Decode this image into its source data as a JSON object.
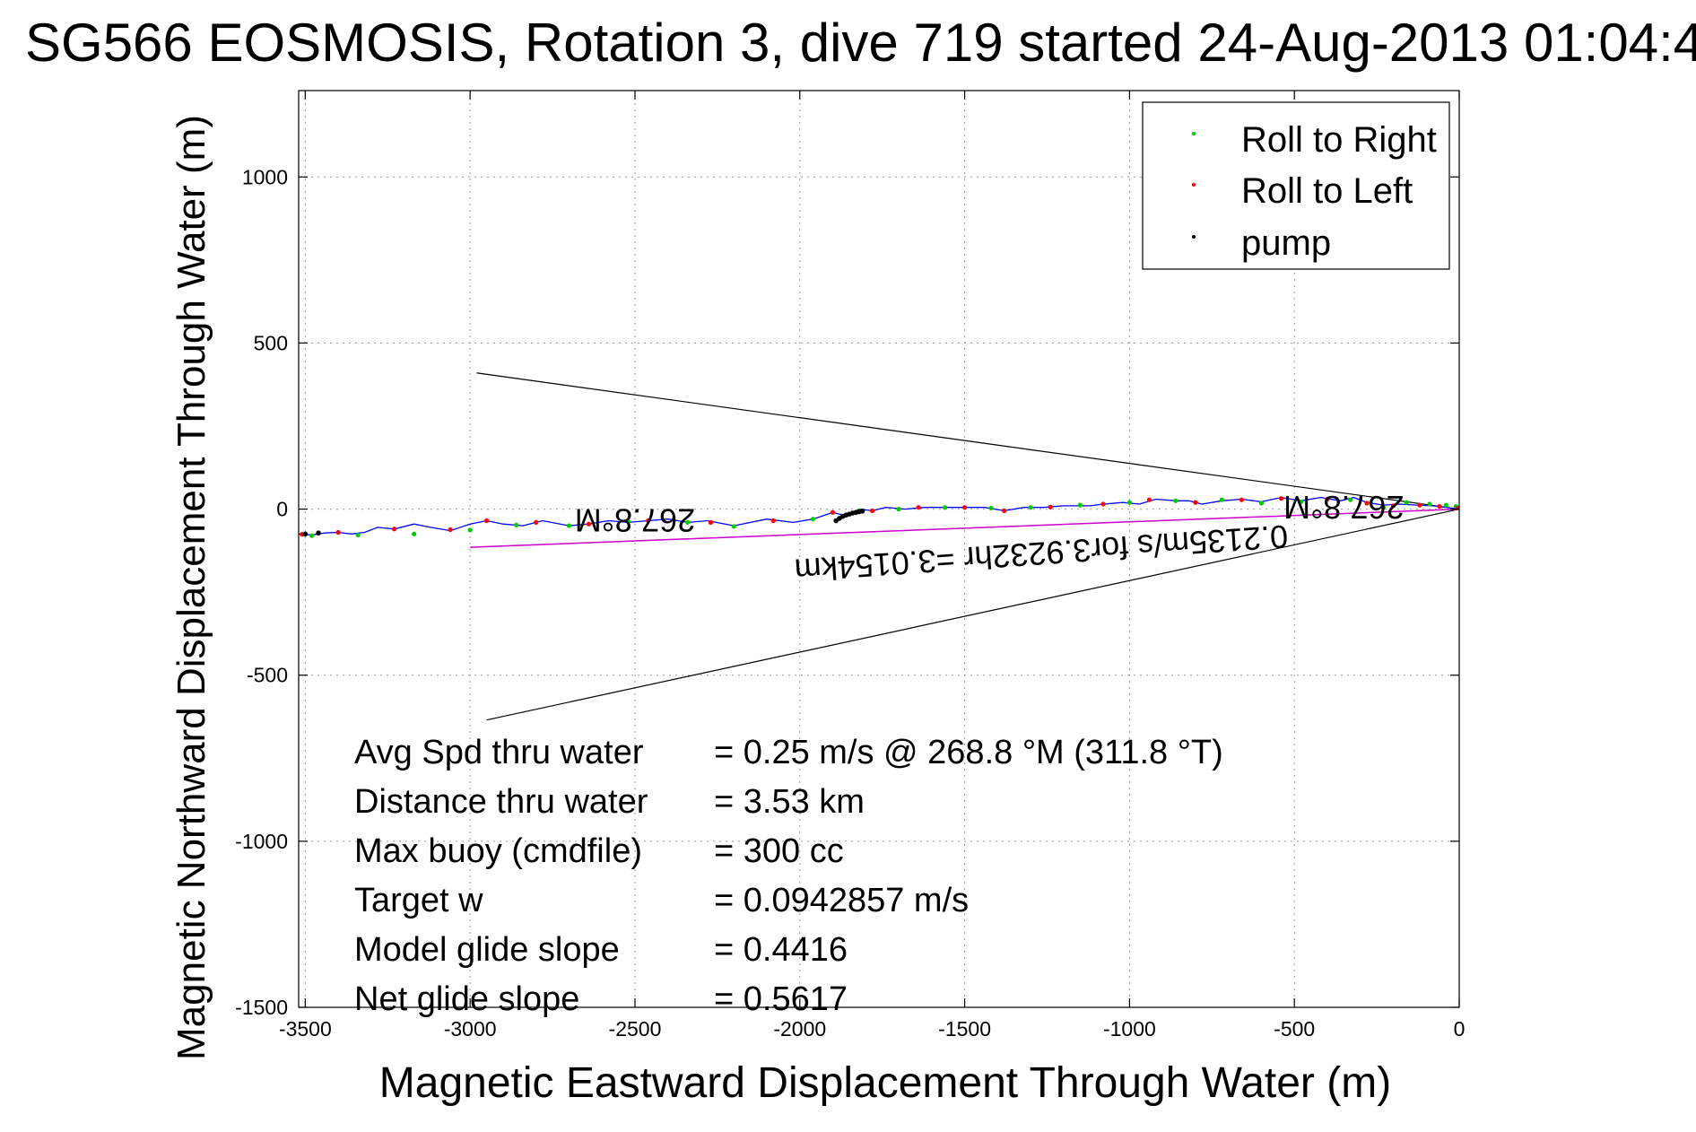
{
  "chart_data": {
    "type": "scatter",
    "title": "SG566 EOSMOSIS, Rotation 3, dive 719 started 24-Aug-2013 01:04:4",
    "xlabel": "Magnetic Eastward Displacement Through Water (m)",
    "ylabel": "Magnetic Northward Displacement Through Water (m)",
    "xlim": [
      -3520,
      0
    ],
    "ylim": [
      -1500,
      1260
    ],
    "xticks": [
      -3500,
      -3000,
      -2500,
      -2000,
      -1500,
      -1000,
      -500,
      0
    ],
    "yticks": [
      -1500,
      -1000,
      -500,
      0,
      500,
      1000
    ],
    "xtick_labels": [
      "-3500",
      "-3000",
      "-2500",
      "-2000",
      "-1500",
      "-1000",
      "-500",
      "0"
    ],
    "ytick_labels": [
      "-1500",
      "-1000",
      "-500",
      "0",
      "500",
      "1000"
    ],
    "grid": true,
    "legend_position": "top-right",
    "legend": [
      {
        "label": "Roll to Right",
        "color": "#00cc00"
      },
      {
        "label": "Roll to Left",
        "color": "#ff0000"
      },
      {
        "label": "pump",
        "color": "#000000"
      }
    ],
    "track": {
      "color": "#0000ff",
      "points": [
        [
          0,
          0
        ],
        [
          -40,
          5
        ],
        [
          -80,
          10
        ],
        [
          -130,
          12
        ],
        [
          -180,
          15
        ],
        [
          -230,
          12
        ],
        [
          -280,
          20
        ],
        [
          -320,
          35
        ],
        [
          -360,
          25
        ],
        [
          -420,
          35
        ],
        [
          -480,
          25
        ],
        [
          -540,
          35
        ],
        [
          -600,
          22
        ],
        [
          -660,
          30
        ],
        [
          -720,
          25
        ],
        [
          -780,
          15
        ],
        [
          -820,
          25
        ],
        [
          -860,
          25
        ],
        [
          -920,
          30
        ],
        [
          -970,
          15
        ],
        [
          -1020,
          20
        ],
        [
          -1080,
          15
        ],
        [
          -1120,
          10
        ],
        [
          -1200,
          10
        ],
        [
          -1260,
          5
        ],
        [
          -1320,
          5
        ],
        [
          -1380,
          -5
        ],
        [
          -1440,
          5
        ],
        [
          -1500,
          5
        ],
        [
          -1560,
          5
        ],
        [
          -1620,
          5
        ],
        [
          -1680,
          0
        ],
        [
          -1740,
          5
        ],
        [
          -1780,
          -5
        ],
        [
          -1820,
          0
        ],
        [
          -1860,
          -20
        ],
        [
          -1900,
          -10
        ],
        [
          -1960,
          -30
        ],
        [
          -2020,
          -40
        ],
        [
          -2100,
          -30
        ],
        [
          -2200,
          -50
        ],
        [
          -2280,
          -35
        ],
        [
          -2340,
          -40
        ],
        [
          -2400,
          -30
        ],
        [
          -2460,
          -35
        ],
        [
          -2520,
          -40
        ],
        [
          -2580,
          -35
        ],
        [
          -2640,
          -45
        ],
        [
          -2700,
          -50
        ],
        [
          -2780,
          -35
        ],
        [
          -2840,
          -50
        ],
        [
          -2900,
          -45
        ],
        [
          -2950,
          -35
        ],
        [
          -3000,
          -45
        ],
        [
          -3060,
          -65
        ],
        [
          -3120,
          -55
        ],
        [
          -3170,
          -45
        ],
        [
          -3230,
          -60
        ],
        [
          -3280,
          -55
        ],
        [
          -3320,
          -70
        ],
        [
          -3360,
          -75
        ],
        [
          -3400,
          -70
        ],
        [
          -3440,
          -72
        ],
        [
          -3480,
          -78
        ],
        [
          -3520,
          -75
        ]
      ]
    },
    "roll_right_points": [
      [
        -10,
        8
      ],
      [
        -40,
        12
      ],
      [
        -90,
        15
      ],
      [
        -160,
        20
      ],
      [
        -230,
        5
      ],
      [
        -330,
        28
      ],
      [
        -480,
        22
      ],
      [
        -600,
        18
      ],
      [
        -720,
        28
      ],
      [
        -860,
        25
      ],
      [
        -1000,
        20
      ],
      [
        -1150,
        12
      ],
      [
        -1300,
        5
      ],
      [
        -1420,
        3
      ],
      [
        -1560,
        5
      ],
      [
        -1700,
        0
      ],
      [
        -1820,
        -5
      ],
      [
        -1960,
        -30
      ],
      [
        -2200,
        -52
      ],
      [
        -2340,
        -40
      ],
      [
        -2520,
        -38
      ],
      [
        -2700,
        -50
      ],
      [
        -2860,
        -48
      ],
      [
        -3000,
        -63
      ],
      [
        -3170,
        -75
      ],
      [
        -3340,
        -78
      ],
      [
        -3480,
        -80
      ]
    ],
    "roll_left_points": [
      [
        -5,
        3
      ],
      [
        -60,
        8
      ],
      [
        -120,
        12
      ],
      [
        -200,
        10
      ],
      [
        -280,
        18
      ],
      [
        -400,
        30
      ],
      [
        -540,
        32
      ],
      [
        -660,
        28
      ],
      [
        -800,
        20
      ],
      [
        -940,
        28
      ],
      [
        -1080,
        15
      ],
      [
        -1240,
        6
      ],
      [
        -1380,
        -5
      ],
      [
        -1500,
        5
      ],
      [
        -1640,
        5
      ],
      [
        -1780,
        -5
      ],
      [
        -1900,
        -10
      ],
      [
        -2080,
        -35
      ],
      [
        -2270,
        -40
      ],
      [
        -2460,
        -35
      ],
      [
        -2640,
        -45
      ],
      [
        -2800,
        -40
      ],
      [
        -2950,
        -35
      ],
      [
        -3060,
        -62
      ],
      [
        -3230,
        -60
      ],
      [
        -3400,
        -70
      ],
      [
        -3510,
        -76
      ]
    ],
    "pump_points": [
      [
        -1890,
        -35
      ],
      [
        -1880,
        -28
      ],
      [
        -1870,
        -22
      ],
      [
        -1860,
        -18
      ],
      [
        -1850,
        -15
      ],
      [
        -1840,
        -12
      ],
      [
        -1830,
        -10
      ],
      [
        -1820,
        -8
      ],
      [
        -1810,
        -6
      ],
      [
        -3500,
        -75
      ],
      [
        -3460,
        -72
      ]
    ],
    "net_track_line": {
      "color": "#cc00cc",
      "from": [
        0,
        0
      ],
      "to": [
        -3000,
        -115
      ]
    },
    "heading_cone": {
      "color": "#000000",
      "lines": [
        {
          "from": [
            0,
            0
          ],
          "to": [
            -2980,
            410
          ]
        },
        {
          "from": [
            0,
            0
          ],
          "to": [
            -2950,
            -635
          ]
        }
      ]
    },
    "annotations": [
      {
        "text": "267.8°M",
        "x": -2500,
        "y": 0,
        "rotation": 180
      },
      {
        "text": "267.8°M",
        "x": -350,
        "y": 40,
        "rotation": 180
      },
      {
        "text": "0.2135m/s for3.9232hr =3.0154km",
        "x": -1270,
        "y": -100,
        "rotation": 176
      }
    ],
    "stats": [
      {
        "label": "Avg Spd thru water",
        "value": "=  0.25 m/s @ 268.8 °M (311.8 °T)"
      },
      {
        "label": "Distance thru water",
        "value": "=  3.53 km"
      },
      {
        "label": "Max buoy (cmdfile)",
        "value": "= 300 cc"
      },
      {
        "label": "Target w",
        "value": "= 0.0942857 m/s"
      },
      {
        "label": "Model glide slope",
        "value": "= 0.4416"
      },
      {
        "label": "Net glide slope",
        "value": "= 0.5617"
      }
    ]
  }
}
